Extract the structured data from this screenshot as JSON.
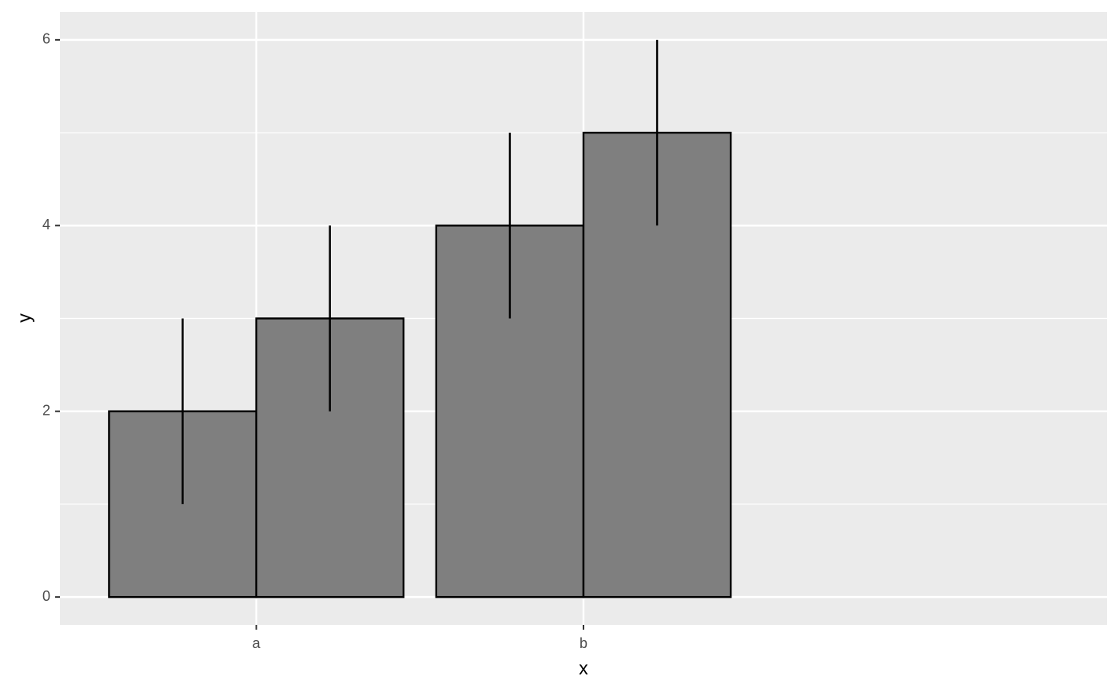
{
  "chart_data": {
    "type": "bar",
    "x_label": "x",
    "y_label": "y",
    "categories": [
      "a",
      "b"
    ],
    "series": [
      {
        "color": "#7f7f7f",
        "values": [
          2,
          4
        ],
        "errors": [
          1,
          1
        ]
      },
      {
        "color": "#7f7f7f",
        "values": [
          3,
          5
        ],
        "errors": [
          1,
          1
        ]
      }
    ],
    "ylim": [
      -0.3,
      6.3
    ],
    "yticks": [
      0,
      2,
      4,
      6
    ],
    "minor_yticks": [
      1,
      3,
      5
    ],
    "grid": true
  }
}
